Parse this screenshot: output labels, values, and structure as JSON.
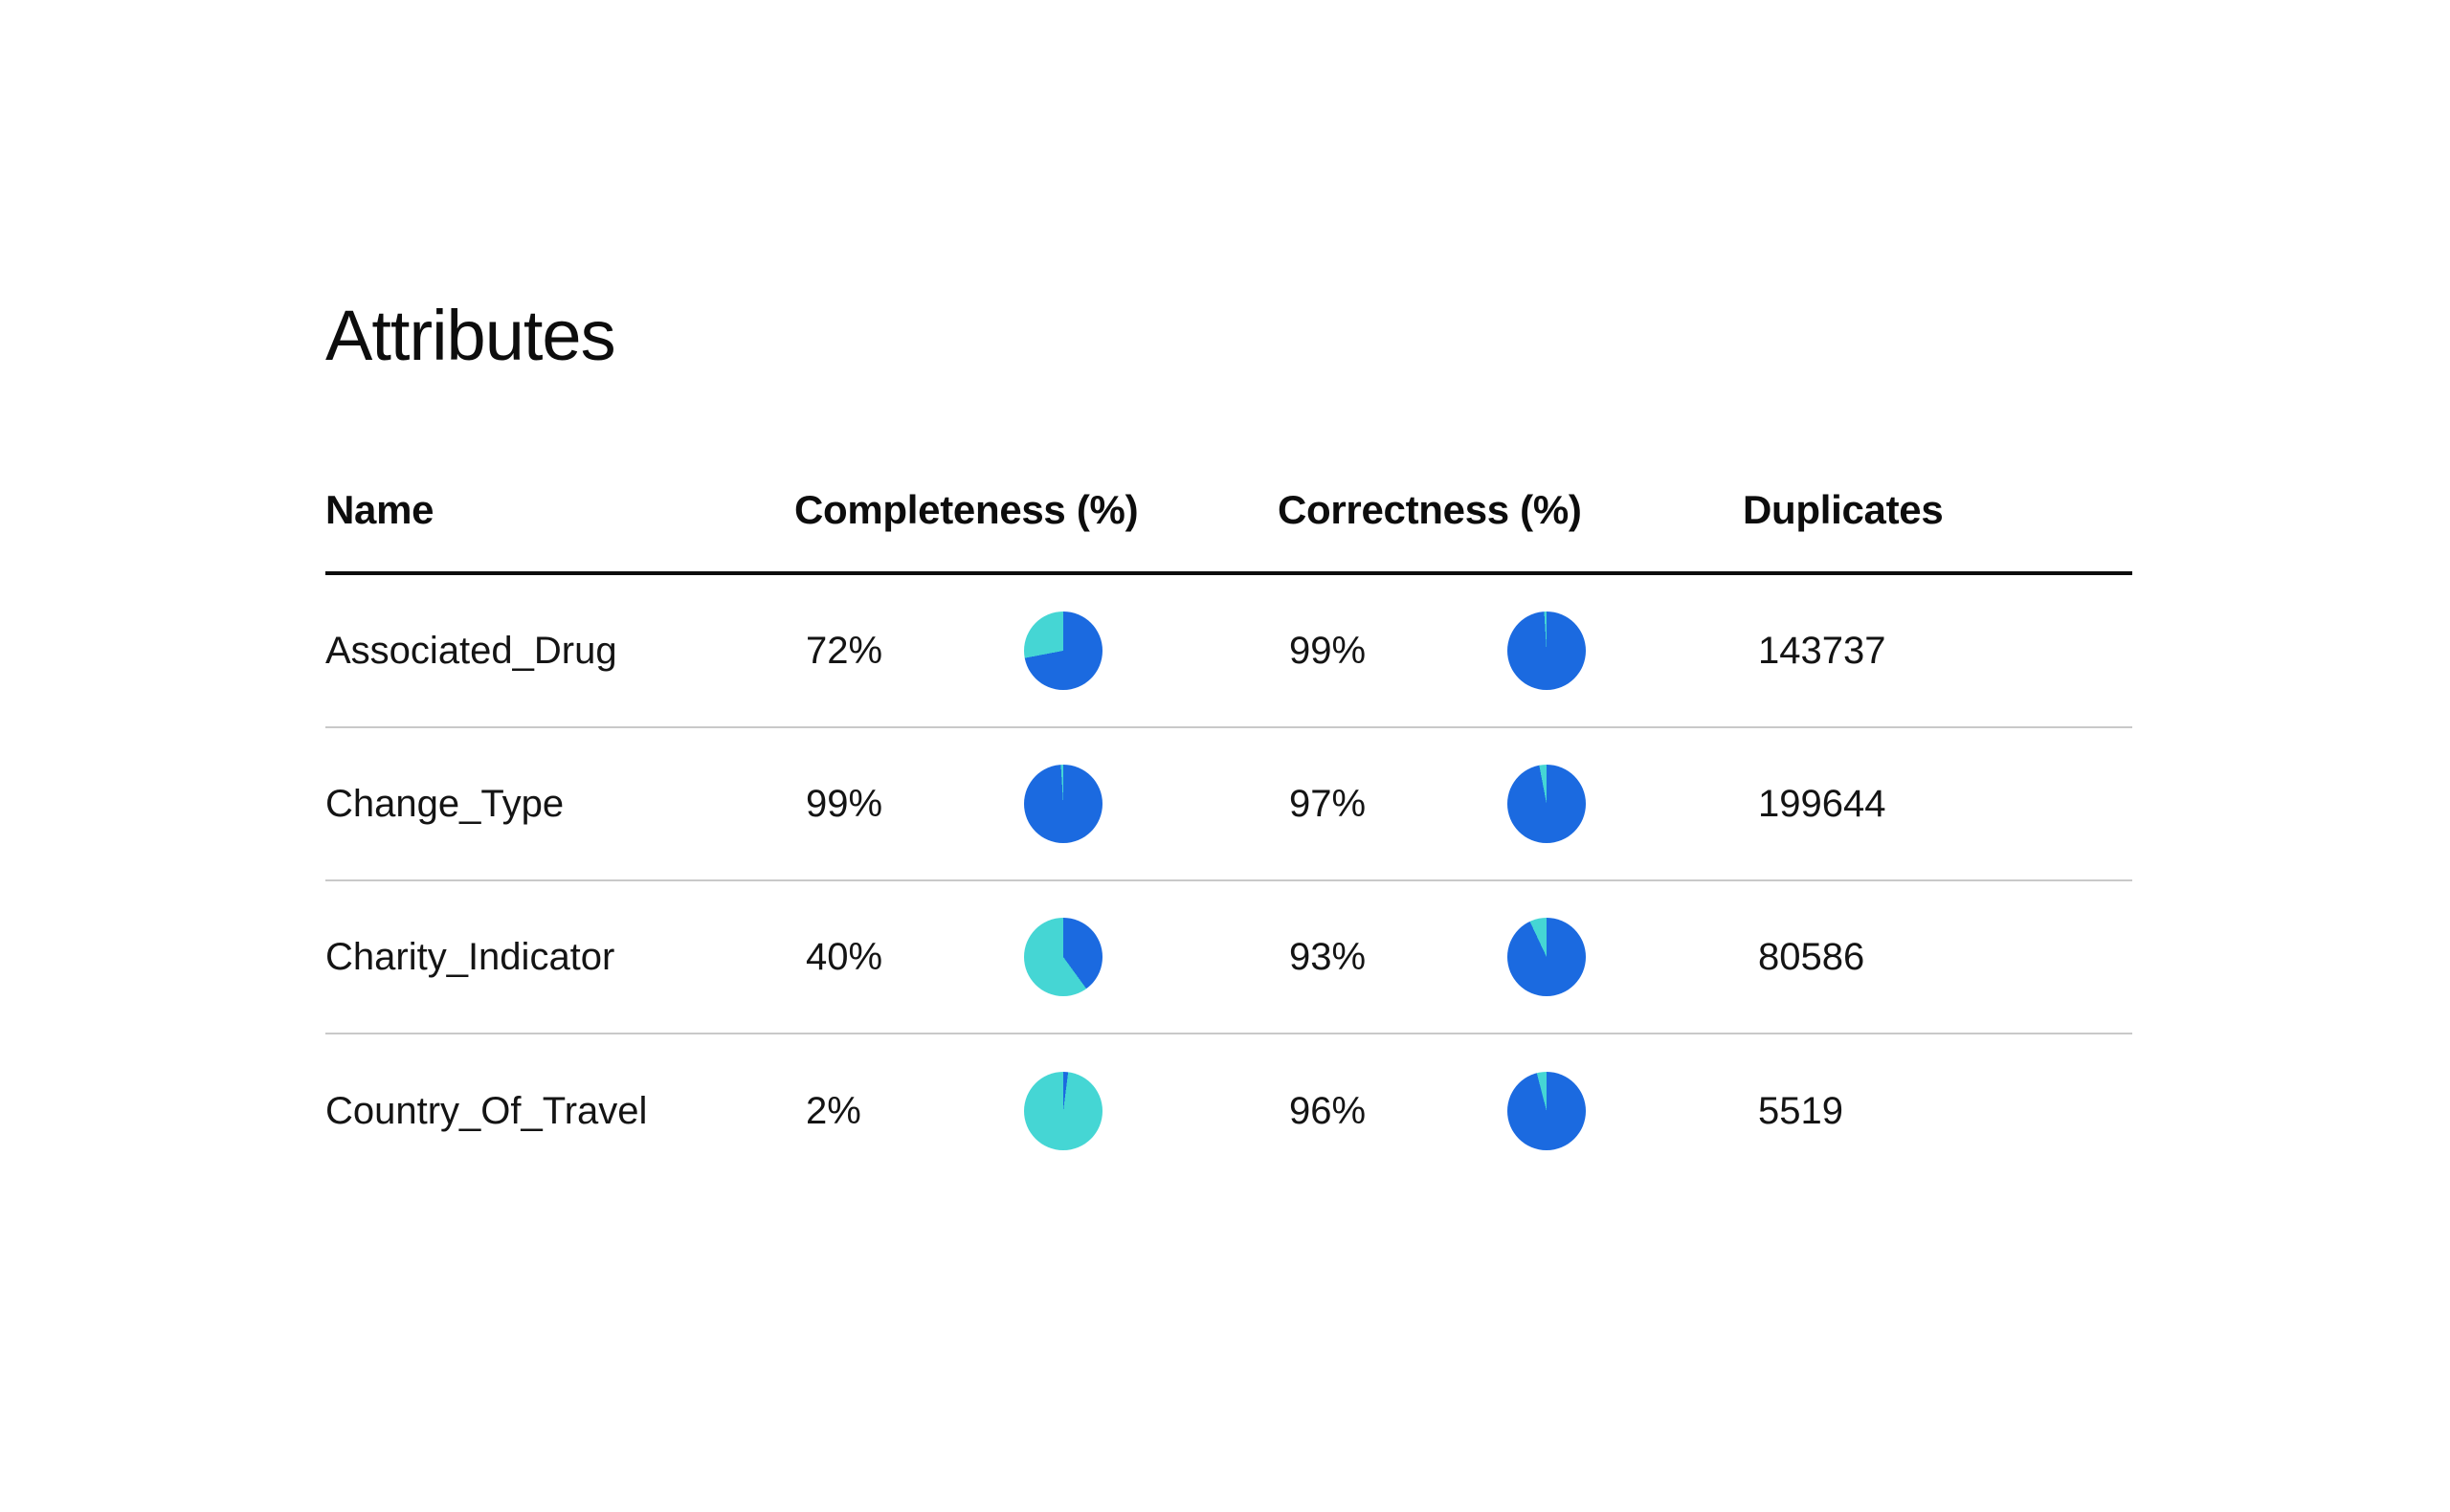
{
  "page": {
    "title": "Attributes"
  },
  "table": {
    "columns": [
      "Name",
      "Completeness (%)",
      "Correctness (%)",
      "Duplicates"
    ],
    "rows": [
      {
        "name": "Associated_Drug",
        "completeness": 72,
        "completeness_label": "72%",
        "correctness": 99,
        "correctness_label": "99%",
        "duplicates": "143737"
      },
      {
        "name": "Change_Type",
        "completeness": 99,
        "completeness_label": "99%",
        "correctness": 97,
        "correctness_label": "97%",
        "duplicates": "199644"
      },
      {
        "name": "Charity_Indicator",
        "completeness": 40,
        "completeness_label": "40%",
        "correctness": 93,
        "correctness_label": "93%",
        "duplicates": "80586"
      },
      {
        "name": "Country_Of_Travel",
        "completeness": 2,
        "completeness_label": "2%",
        "correctness": 96,
        "correctness_label": "96%",
        "duplicates": "5519"
      }
    ]
  },
  "chart_data": {
    "type": "pie",
    "description": "Per-row mini pie charts; filled slice = metric percent, starts at 12 o'clock clockwise",
    "series": [
      {
        "name": "Associated_Drug completeness",
        "values": [
          72,
          28
        ]
      },
      {
        "name": "Associated_Drug correctness",
        "values": [
          99,
          1
        ]
      },
      {
        "name": "Change_Type completeness",
        "values": [
          99,
          1
        ]
      },
      {
        "name": "Change_Type correctness",
        "values": [
          97,
          3
        ]
      },
      {
        "name": "Charity_Indicator completeness",
        "values": [
          40,
          60
        ]
      },
      {
        "name": "Charity_Indicator correctness",
        "values": [
          93,
          7
        ]
      },
      {
        "name": "Country_Of_Travel completeness",
        "values": [
          2,
          98
        ]
      },
      {
        "name": "Country_Of_Travel correctness",
        "values": [
          96,
          4
        ]
      }
    ]
  },
  "colors": {
    "pie_filled": "#1b6ae0",
    "pie_remainder": "#45d6d4",
    "header_rule": "#0c0c0c",
    "row_divider": "#c9c9c9",
    "text": "#141414",
    "background": "#ffffff"
  }
}
